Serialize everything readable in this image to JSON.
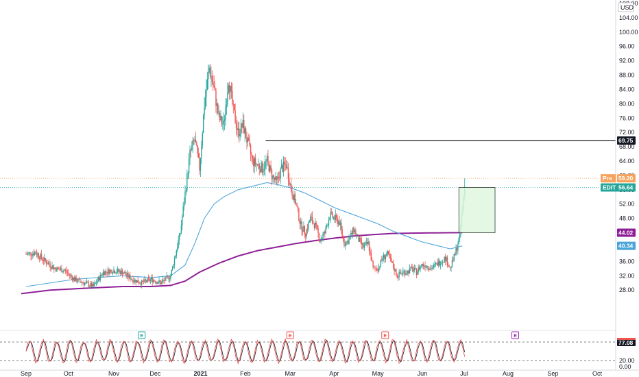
{
  "chart_data": {
    "type": "candlestick",
    "currency": "USD",
    "colors": {
      "up": "#26a69a",
      "down": "#ef5350",
      "ma_fast": "#4ba3d9",
      "ma_slow": "#8e1e96",
      "resistance": "#000000",
      "box_fill": "#dff7df",
      "box_stroke": "#4caf50",
      "pre_line": "#f7a35c",
      "last_line": "#26a69a",
      "osc_k": "#ef5350",
      "osc_d": "#131722"
    },
    "ylim": [
      20,
      108
    ],
    "y_ticks": [
      "28.00",
      "32.00",
      "36.00",
      "40.00",
      "44.00",
      "48.00",
      "52.00",
      "56.00",
      "60.00",
      "64.00",
      "68.00",
      "72.00",
      "76.00",
      "80.00",
      "84.00",
      "88.00",
      "92.00",
      "96.00",
      "100.00",
      "104.00",
      "108.00"
    ],
    "x_ticks": [
      {
        "label": "Sep",
        "week": 0
      },
      {
        "label": "Oct",
        "week": 8.8
      },
      {
        "label": "Nov",
        "week": 18.2
      },
      {
        "label": "Dec",
        "week": 26.8
      },
      {
        "label": "2021",
        "week": 36.2
      },
      {
        "label": "Feb",
        "week": 45.5
      },
      {
        "label": "Mar",
        "week": 54.8
      },
      {
        "label": "Apr",
        "week": 63.9
      },
      {
        "label": "May",
        "week": 73.0
      },
      {
        "label": "Jun",
        "week": 82.2
      },
      {
        "label": "Jul",
        "week": 90.9
      },
      {
        "label": "Aug",
        "week": 100.0
      },
      {
        "label": "Sep",
        "week": 109.3
      },
      {
        "label": "Oct",
        "week": 118.5
      }
    ],
    "price_points": [
      [
        0,
        38
      ],
      [
        2,
        38.5
      ],
      [
        4,
        36
      ],
      [
        6,
        34
      ],
      [
        8,
        33.5
      ],
      [
        10,
        31
      ],
      [
        12,
        30
      ],
      [
        14,
        29
      ],
      [
        16,
        33
      ],
      [
        18,
        33.5
      ],
      [
        20,
        33
      ],
      [
        22,
        31
      ],
      [
        24,
        30
      ],
      [
        26,
        31
      ],
      [
        28,
        30
      ],
      [
        30,
        32
      ],
      [
        31,
        38
      ],
      [
        32,
        44
      ],
      [
        33,
        55
      ],
      [
        34,
        66
      ],
      [
        35,
        70
      ],
      [
        36,
        62
      ],
      [
        37,
        80
      ],
      [
        38,
        90
      ],
      [
        39,
        84
      ],
      [
        40,
        76
      ],
      [
        41,
        74
      ],
      [
        42,
        87
      ],
      [
        43,
        78
      ],
      [
        44,
        72
      ],
      [
        45,
        74
      ],
      [
        46,
        69
      ],
      [
        47,
        64
      ],
      [
        48,
        63
      ],
      [
        49,
        62
      ],
      [
        50,
        64
      ],
      [
        51,
        60
      ],
      [
        52,
        58
      ],
      [
        53,
        62
      ],
      [
        54,
        63
      ],
      [
        55,
        56
      ],
      [
        56,
        52
      ],
      [
        57,
        46
      ],
      [
        58,
        44
      ],
      [
        59,
        48
      ],
      [
        60,
        46
      ],
      [
        61,
        42
      ],
      [
        62,
        44
      ],
      [
        63,
        49
      ],
      [
        64,
        48
      ],
      [
        65,
        47
      ],
      [
        66,
        41
      ],
      [
        67,
        42
      ],
      [
        68,
        45
      ],
      [
        69,
        42
      ],
      [
        70,
        40
      ],
      [
        71,
        41
      ],
      [
        72,
        34
      ],
      [
        73,
        34
      ],
      [
        74,
        37
      ],
      [
        75,
        38
      ],
      [
        76,
        35
      ],
      [
        77,
        32
      ],
      [
        78,
        33
      ],
      [
        79,
        33
      ],
      [
        80,
        34
      ],
      [
        81,
        33
      ],
      [
        82,
        35
      ],
      [
        83,
        35
      ],
      [
        84,
        34
      ],
      [
        85,
        35
      ],
      [
        86,
        36
      ],
      [
        87,
        37
      ],
      [
        88,
        34
      ],
      [
        89,
        38
      ],
      [
        90,
        43
      ],
      [
        91,
        57
      ]
    ],
    "ma_fast_points": [
      [
        0,
        29
      ],
      [
        10,
        31
      ],
      [
        20,
        32
      ],
      [
        26,
        31.5
      ],
      [
        30,
        32
      ],
      [
        33,
        35
      ],
      [
        35,
        41
      ],
      [
        37,
        48
      ],
      [
        39,
        52
      ],
      [
        41,
        54
      ],
      [
        44,
        56
      ],
      [
        47,
        57
      ],
      [
        50,
        58
      ],
      [
        52,
        57.5
      ],
      [
        55,
        56.5
      ],
      [
        58,
        55
      ],
      [
        61,
        53
      ],
      [
        64,
        51
      ],
      [
        67,
        49.5
      ],
      [
        70,
        48
      ],
      [
        73,
        46.5
      ],
      [
        76,
        44.5
      ],
      [
        79,
        43
      ],
      [
        82,
        41.5
      ],
      [
        85,
        40.5
      ],
      [
        88,
        39.5
      ],
      [
        90.5,
        40.34
      ]
    ],
    "ma_slow_points": [
      [
        -1,
        27
      ],
      [
        5,
        28
      ],
      [
        12,
        28.5
      ],
      [
        20,
        29
      ],
      [
        26,
        29
      ],
      [
        30,
        29.3
      ],
      [
        33,
        30.5
      ],
      [
        36,
        33
      ],
      [
        40,
        35.5
      ],
      [
        44,
        37.5
      ],
      [
        48,
        39
      ],
      [
        52,
        40
      ],
      [
        56,
        41
      ],
      [
        60,
        41.8
      ],
      [
        64,
        42.5
      ],
      [
        68,
        43.1
      ],
      [
        72,
        43.5
      ],
      [
        76,
        43.8
      ],
      [
        80,
        43.9
      ],
      [
        84,
        43.95
      ],
      [
        88,
        44
      ],
      [
        90.5,
        44.02
      ]
    ],
    "resistance_level": 69.75,
    "resistance_from_week": 49.7,
    "box": {
      "x0_week": 89.8,
      "x1_week": 97.3,
      "y_low": 44.02,
      "y_high": 56.64
    },
    "price_tags": [
      {
        "label": "",
        "value": "69.75",
        "price": 69.75,
        "color": "#131722"
      },
      {
        "label": "Pre",
        "value": "59.20",
        "price": 59.2,
        "color": "#f7a35c"
      },
      {
        "label": "EDIT",
        "value": "56.64",
        "price": 56.64,
        "color": "#26a69a"
      },
      {
        "label": "",
        "value": "44.02",
        "price": 44.02,
        "color": "#8e1e96"
      },
      {
        "label": "",
        "value": "40.34",
        "price": 40.34,
        "color": "#4ba3d9"
      }
    ],
    "earnings_markers": [
      {
        "letter": "E",
        "week": 24,
        "color": "#26a69a"
      },
      {
        "letter": "E",
        "week": 54.8,
        "color": "#ef5350"
      },
      {
        "letter": "E",
        "week": 74.5,
        "color": "#ef5350"
      },
      {
        "letter": "E",
        "week": 101.5,
        "color": "#9c27b0"
      }
    ],
    "oscillator": {
      "ylim": [
        0,
        100
      ],
      "y_ticks": [
        "0.00",
        "20.00"
      ],
      "current_value": "77.08",
      "upper_band": 80,
      "lower_band": 20
    }
  }
}
